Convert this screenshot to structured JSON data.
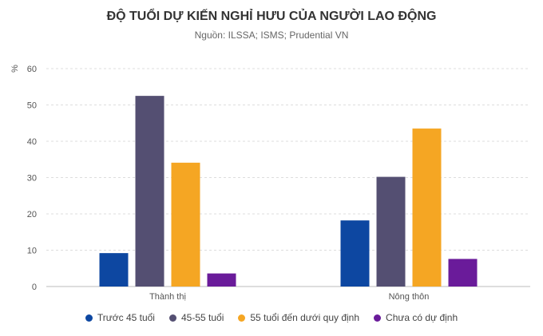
{
  "chart_data": {
    "type": "bar",
    "title": "ĐỘ TUỔI DỰ KIẾN NGHỈ HƯU CỦA NGƯỜI LAO ĐỘNG",
    "subtitle": "Nguồn: ILSSA; ISMS; Prudential VN",
    "ylabel": "%",
    "xlabel": "",
    "ylim": [
      0,
      60
    ],
    "yticks": [
      0,
      10,
      20,
      30,
      40,
      50,
      60
    ],
    "grid": true,
    "legend_position": "bottom",
    "categories": [
      "Thành thị",
      "Nông thôn"
    ],
    "series": [
      {
        "name": "Trước 45 tuổi",
        "color": "#0d47a1",
        "values": [
          9.2,
          18.2
        ]
      },
      {
        "name": "45-55 tuổi",
        "color": "#544f72",
        "values": [
          52.5,
          30.2
        ]
      },
      {
        "name": "55 tuổi đến dưới quy định",
        "color": "#f5a623",
        "values": [
          34.1,
          43.5
        ]
      },
      {
        "name": "Chưa có dự định",
        "color": "#6a1b9a",
        "values": [
          3.6,
          7.6
        ]
      }
    ]
  }
}
